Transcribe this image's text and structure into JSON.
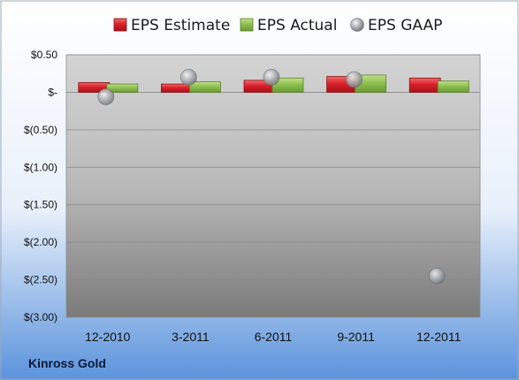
{
  "chart_data": {
    "type": "bar",
    "categories": [
      "12-2010",
      "3-2011",
      "6-2011",
      "9-2011",
      "12-2011"
    ],
    "series": [
      {
        "name": "EPS Estimate",
        "kind": "bar",
        "values": [
          0.13,
          0.11,
          0.16,
          0.21,
          0.19
        ]
      },
      {
        "name": "EPS Actual",
        "kind": "bar",
        "values": [
          0.11,
          0.14,
          0.19,
          0.23,
          0.15
        ]
      },
      {
        "name": "EPS GAAP",
        "kind": "scatter",
        "values": [
          -0.06,
          0.2,
          0.2,
          0.17,
          -2.45
        ]
      }
    ],
    "y_ticks": [
      "$0.50",
      "$-",
      "$(0.50)",
      "$(1.00)",
      "$(1.50)",
      "$(2.00)",
      "$(2.50)",
      "$(3.00)"
    ],
    "y_tick_values": [
      0.5,
      0,
      -0.5,
      -1.0,
      -1.5,
      -2.0,
      -2.5,
      -3.0
    ],
    "ylim": [
      -3.0,
      0.5
    ],
    "grid": true,
    "legend_position": "top",
    "company": "Kinross Gold",
    "colors": {
      "estimate": "#d9202a",
      "actual": "#8fc050",
      "gaap": "#a7abb0",
      "background_top": "#ffffff",
      "background_bottom": "#5a93dc"
    }
  }
}
